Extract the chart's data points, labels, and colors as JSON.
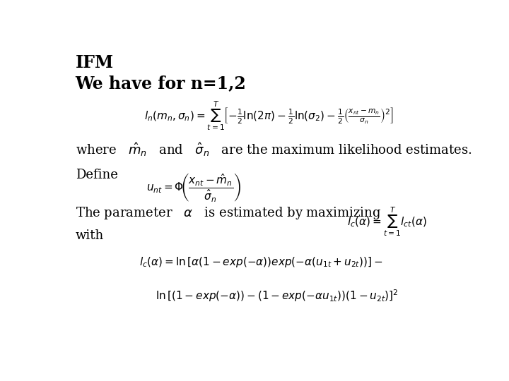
{
  "background_color": "#ffffff",
  "title_line1": "IFM",
  "title_line2": "We have for n=1,2",
  "fontsize_title": 17,
  "fontsize_body": 13,
  "fontsize_eq": 11,
  "text_color": "#000000"
}
